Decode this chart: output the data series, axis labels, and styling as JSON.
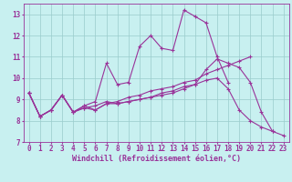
{
  "xlabel": "Windchill (Refroidissement éolien,°C)",
  "bg_color": "#c8f0f0",
  "line_color": "#993399",
  "grid_color": "#99cccc",
  "xlim": [
    -0.5,
    23.5
  ],
  "ylim": [
    7,
    13.5
  ],
  "yticks": [
    7,
    8,
    9,
    10,
    11,
    12,
    13
  ],
  "xticks": [
    0,
    1,
    2,
    3,
    4,
    5,
    6,
    7,
    8,
    9,
    10,
    11,
    12,
    13,
    14,
    15,
    16,
    17,
    18,
    19,
    20,
    21,
    22,
    23
  ],
  "lines": [
    [
      9.3,
      8.2,
      8.5,
      9.2,
      8.4,
      8.7,
      8.9,
      10.7,
      9.7,
      9.8,
      11.5,
      12.0,
      11.4,
      11.3,
      13.2,
      12.9,
      12.6,
      11.0,
      9.8,
      null,
      null,
      null,
      null,
      null
    ],
    [
      9.3,
      8.2,
      8.5,
      9.2,
      8.4,
      8.7,
      8.5,
      8.8,
      8.8,
      8.9,
      9.0,
      9.1,
      9.2,
      9.3,
      9.5,
      9.7,
      10.4,
      10.9,
      10.7,
      10.5,
      9.8,
      8.4,
      7.5,
      7.3
    ],
    [
      9.3,
      8.2,
      8.5,
      9.2,
      8.4,
      8.6,
      8.5,
      8.8,
      8.9,
      9.1,
      9.2,
      9.4,
      9.5,
      9.6,
      9.8,
      9.9,
      10.2,
      10.4,
      10.6,
      10.8,
      11.0,
      null,
      null,
      null
    ],
    [
      9.3,
      8.2,
      8.5,
      9.2,
      8.4,
      8.6,
      8.7,
      8.9,
      8.8,
      8.9,
      9.0,
      9.1,
      9.3,
      9.4,
      9.6,
      9.7,
      9.9,
      10.0,
      9.5,
      8.5,
      8.0,
      7.7,
      7.5,
      null
    ]
  ],
  "markersize": 2.0,
  "linewidth": 0.8,
  "xlabel_fontsize": 6.0,
  "tick_fontsize": 5.5
}
